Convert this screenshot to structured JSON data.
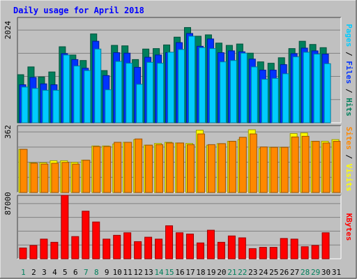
{
  "chart_data": {
    "type": "bar",
    "title": "Daily usage for April 2018",
    "categories": [
      "1",
      "2",
      "3",
      "4",
      "5",
      "6",
      "7",
      "8",
      "9",
      "10",
      "11",
      "12",
      "13",
      "14",
      "15",
      "16",
      "17",
      "18",
      "19",
      "20",
      "21",
      "22",
      "23",
      "24",
      "25",
      "26",
      "27",
      "28",
      "29",
      "30",
      "31"
    ],
    "weekend_days": [
      "1",
      "7",
      "8",
      "14",
      "15",
      "21",
      "22",
      "28",
      "29"
    ],
    "panels": [
      {
        "name": "hits-files-pages",
        "ylim": [
          0,
          2300
        ],
        "max_tick_label": "2024",
        "right_label_parts": [
          {
            "text": "Pages",
            "color": "#00ccff"
          },
          {
            "text": " / ",
            "color": "#000000"
          },
          {
            "text": "Files",
            "color": "#0033ff"
          },
          {
            "text": " / ",
            "color": "#000000"
          },
          {
            "text": "Hits",
            "color": "#00805c"
          }
        ],
        "series": [
          {
            "name": "Hits",
            "color": "#00805c",
            "values": [
              1050,
              1220,
              1000,
              1110,
              1660,
              1480,
              1360,
              1940,
              1140,
              1690,
              1680,
              1380,
              1610,
              1620,
              1700,
              1870,
              2080,
              1890,
              1920,
              1740,
              1690,
              1720,
              1520,
              1330,
              1300,
              1420,
              1620,
              1780,
              1710,
              1640,
              null
            ]
          },
          {
            "name": "Files",
            "color": "#0033ff",
            "values": [
              830,
              990,
              850,
              830,
              1510,
              1380,
              1190,
              1780,
              1030,
              1530,
              1520,
              1210,
              1430,
              1480,
              1530,
              1750,
              1950,
              1670,
              1830,
              1530,
              1570,
              1550,
              1390,
              1150,
              1150,
              1270,
              1510,
              1630,
              1570,
              1500,
              null
            ]
          },
          {
            "name": "Pages",
            "color": "#00ccff",
            "values": [
              780,
              750,
              710,
              710,
              1480,
              1240,
              1140,
              1610,
              720,
              1340,
              1300,
              840,
              1320,
              1300,
              1540,
              1600,
              1890,
              1640,
              1620,
              1330,
              1360,
              1520,
              1220,
              950,
              970,
              1070,
              1440,
              1540,
              1500,
              1290,
              null
            ]
          }
        ]
      },
      {
        "name": "visits-sites",
        "ylim": [
          0,
          400
        ],
        "max_tick_label": "362",
        "right_label_parts": [
          {
            "text": "Sites",
            "color": "#ff8800"
          },
          {
            "text": " / ",
            "color": "#000000"
          },
          {
            "text": "Visits",
            "color": "#ffff00"
          }
        ],
        "series": [
          {
            "name": "Visits",
            "color": "#ffff00",
            "values": [
              258,
              178,
              178,
              190,
              190,
              180,
              193,
              278,
              278,
              290,
              300,
              316,
              283,
              293,
              300,
              296,
              293,
              372,
              283,
              292,
              306,
              316,
              375,
              263,
              270,
              270,
              352,
              356,
              306,
              306,
              316
            ]
          },
          {
            "name": "Sites",
            "color": "#ff8800",
            "values": [
              258,
              175,
              170,
              175,
              180,
              170,
              193,
              275,
              275,
              300,
              300,
              320,
              283,
              286,
              296,
              296,
              286,
              350,
              286,
              292,
              306,
              330,
              350,
              272,
              270,
              270,
              332,
              336,
              306,
              296,
              306
            ]
          }
        ]
      },
      {
        "name": "kbytes",
        "ylim": [
          0,
          100000
        ],
        "max_tick_label": "87000",
        "right_label_parts": [
          {
            "text": "KBytes",
            "color": "#ff0000"
          }
        ],
        "series": [
          {
            "name": "KBytes",
            "color": "#ff0000",
            "values": [
              17000,
              21000,
              31000,
              26000,
              103000,
              35000,
              75000,
              58000,
              31000,
              37000,
              41000,
              27000,
              34000,
              31000,
              52000,
              41000,
              39000,
              25000,
              45000,
              26000,
              36000,
              33000,
              16000,
              18000,
              18000,
              32000,
              31000,
              19000,
              21000,
              41000,
              null
            ]
          }
        ]
      }
    ]
  },
  "colors": {
    "background": "#c0c0c0",
    "title": "#0000ff",
    "weekend_day": "#00805c",
    "weekday": "#000000",
    "grid": "#808080"
  }
}
